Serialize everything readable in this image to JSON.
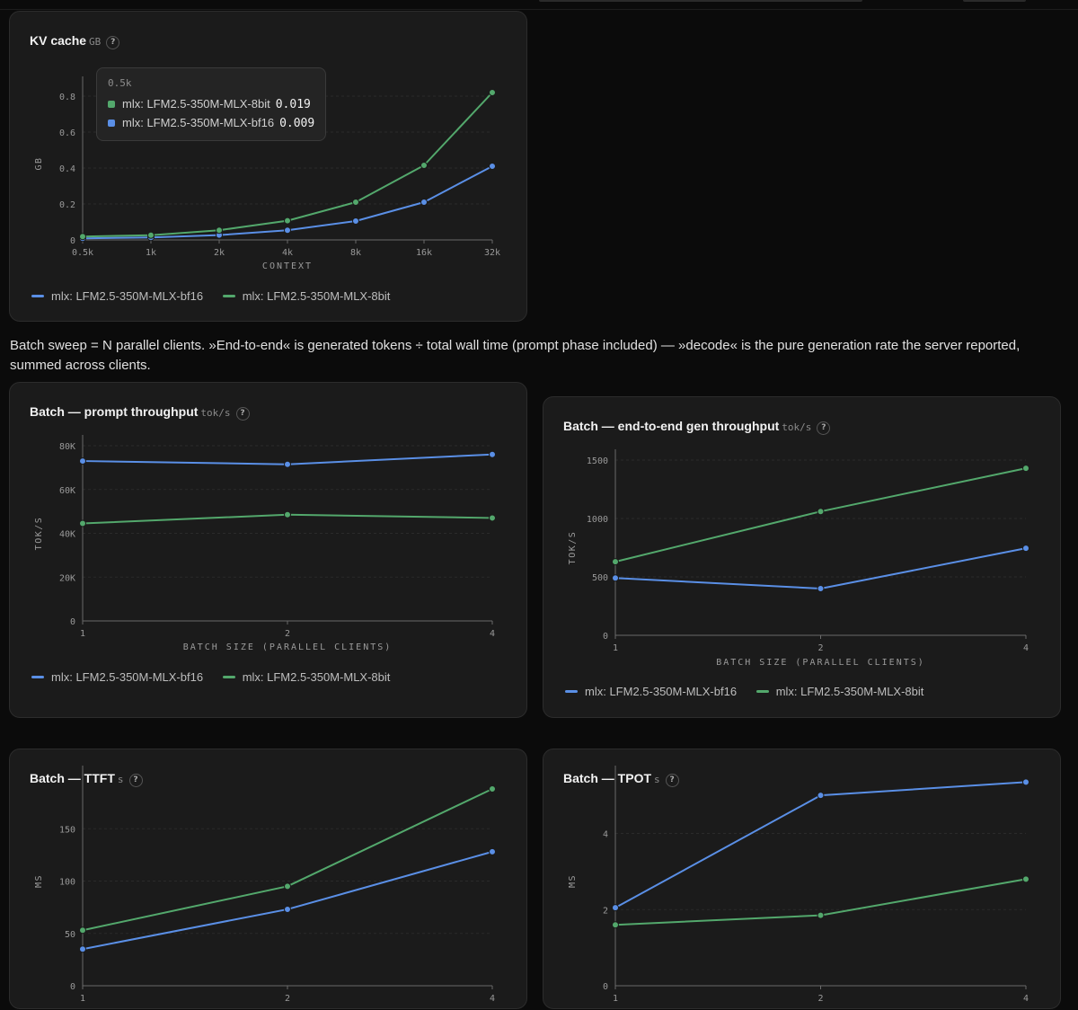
{
  "colors": {
    "bf16": "#5a8fe6",
    "8bit": "#53a86c",
    "grid": "#2b2b2b",
    "axis": "#6a6a6a",
    "tick": "#9a9a9a"
  },
  "note_text": "Batch sweep = N parallel clients. »End-to-end« is generated tokens ÷ total wall time (prompt phase included) — »decode« is the pure generation rate the server reported, summed across clients.",
  "help_glyph": "?",
  "legend": {
    "bf16": "mlx: LFM2.5-350M-MLX-bf16",
    "8bit": "mlx: LFM2.5-350M-MLX-8bit"
  },
  "tooltip": {
    "header": "0.5k",
    "rows": [
      {
        "series": "mlx: LFM2.5-350M-MLX-8bit",
        "value": "0.019",
        "color": "#53a86c"
      },
      {
        "series": "mlx: LFM2.5-350M-MLX-bf16",
        "value": "0.009",
        "color": "#5a8fe6"
      }
    ]
  },
  "cards": {
    "kv": {
      "title": "KV cache",
      "unit": "GB"
    },
    "prompt": {
      "title": "Batch — prompt throughput",
      "unit": "tok/s"
    },
    "e2e": {
      "title": "Batch — end-to-end gen throughput",
      "unit": "tok/s"
    },
    "ttft": {
      "title": "Batch — TTFT",
      "unit": "s"
    },
    "tpot": {
      "title": "Batch — TPOT",
      "unit": "s"
    }
  },
  "chart_data": [
    {
      "id": "kv",
      "type": "line",
      "title": "KV cache",
      "unit": "GB",
      "xlabel": "CONTEXT",
      "ylabel": "GB",
      "x": [
        "0.5k",
        "1k",
        "2k",
        "4k",
        "8k",
        "16k",
        "32k"
      ],
      "ylim": [
        0,
        0.85
      ],
      "yticks": [
        0,
        0.2,
        0.4,
        0.6,
        0.8
      ],
      "ytick_labels": [
        "0",
        "0.2",
        "0.4",
        "0.6",
        "0.8"
      ],
      "grid": true,
      "legend": "bottom-left",
      "series": [
        {
          "name": "mlx: LFM2.5-350M-MLX-bf16",
          "key": "bf16",
          "values": [
            0.009,
            0.014,
            0.027,
            0.054,
            0.105,
            0.21,
            0.41
          ]
        },
        {
          "name": "mlx: LFM2.5-350M-MLX-8bit",
          "key": "8bit",
          "values": [
            0.019,
            0.026,
            0.054,
            0.107,
            0.21,
            0.415,
            0.82
          ]
        }
      ]
    },
    {
      "id": "prompt",
      "type": "line",
      "title": "Batch — prompt throughput",
      "unit": "tok/s",
      "xlabel": "BATCH SIZE (PARALLEL CLIENTS)",
      "ylabel": "TOK/S",
      "x": [
        "1",
        "2",
        "4"
      ],
      "ylim": [
        0,
        80000
      ],
      "yticks": [
        0,
        20000,
        40000,
        60000,
        80000
      ],
      "ytick_labels": [
        "0",
        "20K",
        "40K",
        "60K",
        "80K"
      ],
      "grid": true,
      "legend": "bottom-left",
      "series": [
        {
          "name": "mlx: LFM2.5-350M-MLX-bf16",
          "key": "bf16",
          "values": [
            73000,
            71500,
            76000
          ]
        },
        {
          "name": "mlx: LFM2.5-350M-MLX-8bit",
          "key": "8bit",
          "values": [
            44500,
            48500,
            47000
          ]
        }
      ]
    },
    {
      "id": "e2e",
      "type": "line",
      "title": "Batch — end-to-end gen throughput",
      "unit": "tok/s",
      "xlabel": "BATCH SIZE (PARALLEL CLIENTS)",
      "ylabel": "TOK/S",
      "x": [
        "1",
        "2",
        "4"
      ],
      "ylim": [
        0,
        1500
      ],
      "yticks": [
        0,
        500,
        1000,
        1500
      ],
      "ytick_labels": [
        "0",
        "500",
        "1000",
        "1500"
      ],
      "grid": true,
      "legend": "bottom-left",
      "series": [
        {
          "name": "mlx: LFM2.5-350M-MLX-bf16",
          "key": "bf16",
          "values": [
            490,
            400,
            745
          ]
        },
        {
          "name": "mlx: LFM2.5-350M-MLX-8bit",
          "key": "8bit",
          "values": [
            630,
            1060,
            1430
          ]
        }
      ]
    },
    {
      "id": "ttft",
      "type": "line",
      "title": "Batch — TTFT",
      "unit": "s",
      "xlabel": "",
      "ylabel": "MS",
      "x": [
        "1",
        "2",
        "4"
      ],
      "ylim": [
        0,
        200
      ],
      "yticks": [
        0,
        50,
        100,
        150
      ],
      "ytick_labels": [
        "0",
        "50",
        "100",
        "150"
      ],
      "grid": true,
      "legend": "",
      "series": [
        {
          "name": "mlx: LFM2.5-350M-MLX-bf16",
          "key": "bf16",
          "values": [
            35,
            73,
            128
          ]
        },
        {
          "name": "mlx: LFM2.5-350M-MLX-8bit",
          "key": "8bit",
          "values": [
            53,
            95,
            188
          ]
        }
      ]
    },
    {
      "id": "tpot",
      "type": "line",
      "title": "Batch — TPOT",
      "unit": "s",
      "xlabel": "",
      "ylabel": "MS",
      "x": [
        "1",
        "2",
        "4"
      ],
      "ylim": [
        0,
        5.5
      ],
      "yticks": [
        0,
        2,
        4
      ],
      "ytick_labels": [
        "0",
        "2",
        "4"
      ],
      "grid": true,
      "legend": "",
      "series": [
        {
          "name": "mlx: LFM2.5-350M-MLX-bf16",
          "key": "bf16",
          "values": [
            2.05,
            5.0,
            5.35
          ]
        },
        {
          "name": "mlx: LFM2.5-350M-MLX-8bit",
          "key": "8bit",
          "values": [
            1.6,
            1.85,
            2.8
          ]
        }
      ]
    }
  ]
}
